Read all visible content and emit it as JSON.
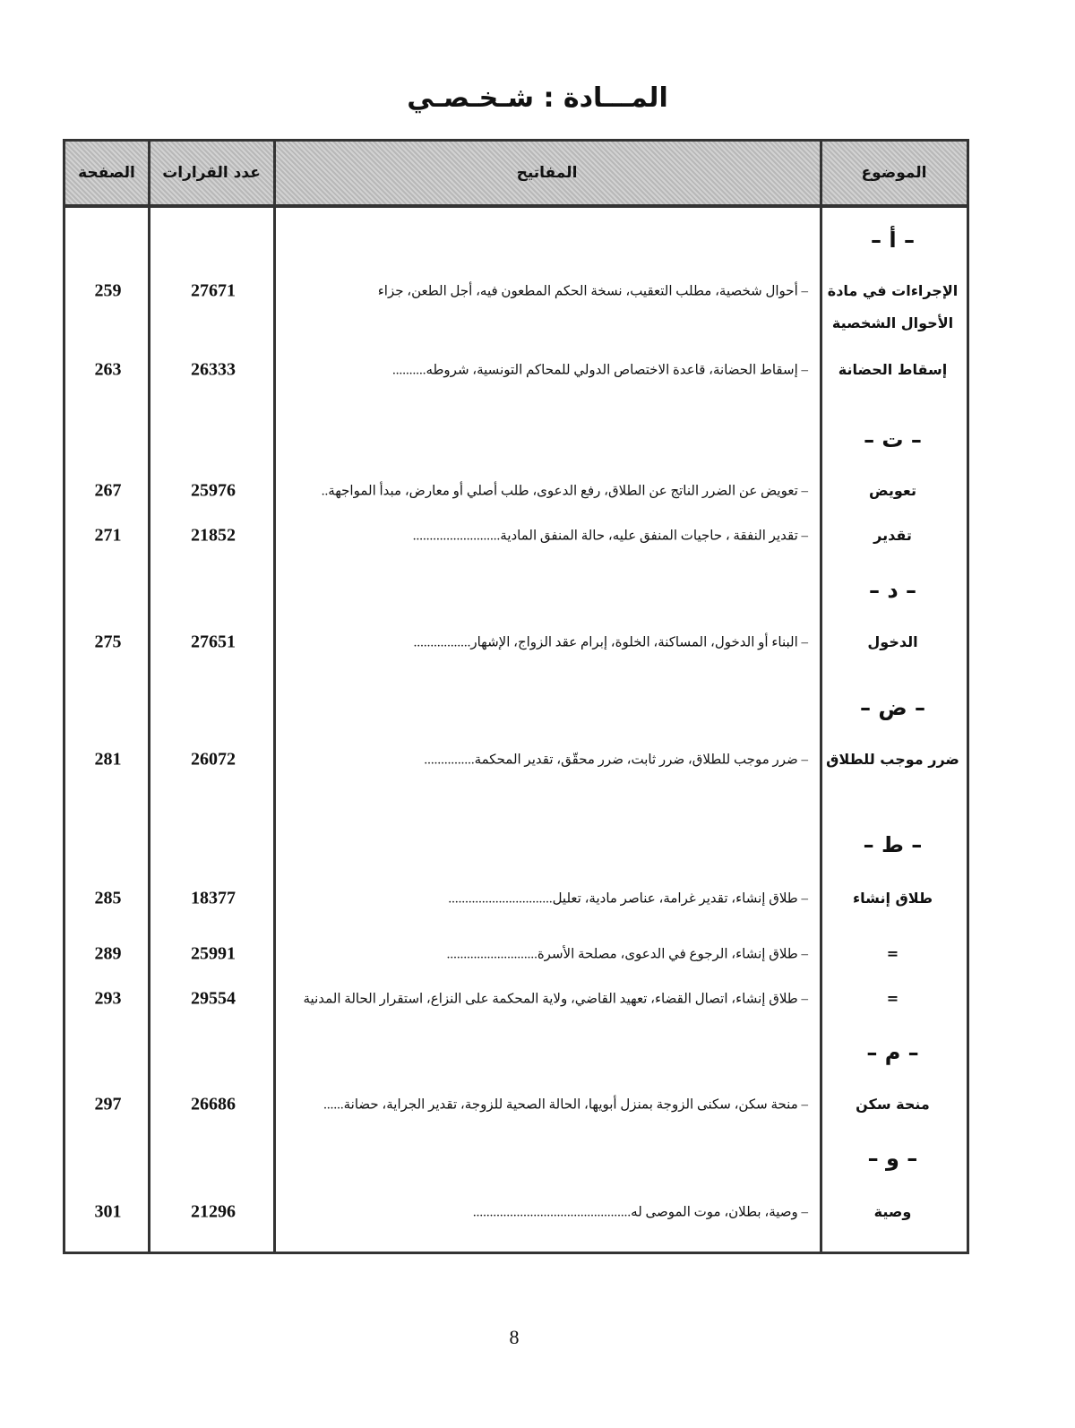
{
  "title": "المـــادة : شـخـصـي",
  "headers": {
    "subject": "الموضوع",
    "keywords": "المفاتيح",
    "count": "عدد القرارات",
    "page": "الصفحة"
  },
  "letters": [
    "– أ –",
    "– ت –",
    "– د –",
    "– ض –",
    "– ط –",
    "– م –",
    "– و –"
  ],
  "rows": [
    {
      "subject": "الإجراءات في مادة الأحوال الشخصية",
      "keywords": "– أحوال شخصية، مطلب التعقيب، نسخة الحكم المطعون فيه، أجل الطعن، جزاء",
      "count": "27671",
      "page": "259"
    },
    {
      "subject": "إسقاط الحضانة",
      "keywords": "– إسقاط الحضانة، قاعدة الاختصاص الدولي للمحاكم التونسية، شروطه..........",
      "count": "26333",
      "page": "263"
    },
    {
      "subject": "تعويض",
      "keywords": "– تعويض عن الضرر الناتج عن الطلاق، رفع الدعوى، طلب أصلي أو معارض، مبدأ المواجهة..",
      "count": "25976",
      "page": "267"
    },
    {
      "subject": "تقدير",
      "keywords": "– تقدير النفقة ، حاجيات المنفق عليه، حالة المنفق المادية..........................",
      "count": "21852",
      "page": "271"
    },
    {
      "subject": "الدخول",
      "keywords": "– البناء أو الدخول، المساكنة، الخلوة، إبرام عقد الزواج، الإشهار.................",
      "count": "27651",
      "page": "275"
    },
    {
      "subject": "ضرر موجب للطلاق",
      "keywords": "– ضرر موجب للطلاق، ضرر ثابت، ضرر محقّق، تقدير المحكمة...............",
      "count": "26072",
      "page": "281"
    },
    {
      "subject": "طلاق إنشاء",
      "keywords": "– طلاق إنشاء، تقدير غرامة، عناصر مادية، تعليل...............................",
      "count": "18377",
      "page": "285"
    },
    {
      "subject": "=",
      "keywords": "– طلاق إنشاء، الرجوع في الدعوى، مصلحة الأسرة...........................",
      "count": "25991",
      "page": "289"
    },
    {
      "subject": "=",
      "keywords": "– طلاق إنشاء، اتصال القضاء، تعهيد القاضي، ولاية المحكمة على النزاع، استقرار الحالة المدنية",
      "count": "29554",
      "page": "293"
    },
    {
      "subject": "منحة سكن",
      "keywords": "– منحة سكن، سكنى الزوجة بمنزل أبويها، الحالة الصحية للزوجة، تقدير الجراية، حضانة......",
      "count": "26686",
      "page": "297"
    },
    {
      "subject": "وصية",
      "keywords": "– وصية، بطلان، موت الموصى له...............................................",
      "count": "21296",
      "page": "301"
    }
  ],
  "page_number": "8"
}
